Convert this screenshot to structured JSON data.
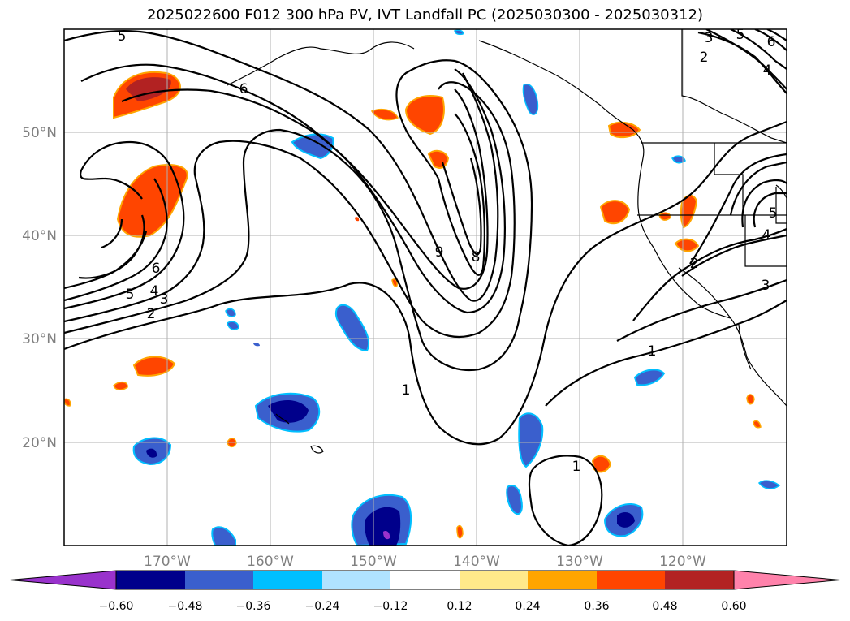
{
  "title": "2025022600 F012 300 hPa PV, IVT Landfall PC (2025030300 - 2025030312)",
  "axes": {
    "lon_labels": [
      "170°W",
      "160°W",
      "150°W",
      "140°W",
      "130°W",
      "120°W"
    ],
    "lat_labels": [
      "50°N",
      "40°N",
      "30°N",
      "20°N"
    ]
  },
  "colorbar": {
    "ticks": [
      "−0.60",
      "−0.48",
      "−0.36",
      "−0.24",
      "−0.12",
      "0.12",
      "0.24",
      "0.36",
      "0.48",
      "0.60"
    ],
    "colors": [
      "#9932cc",
      "#00008b",
      "#3a5fcd",
      "#00bfff",
      "#b0e2ff",
      "#ffffff",
      "#ffe98a",
      "#ffa500",
      "#ff4500",
      "#b22222",
      "#ff82ab"
    ]
  },
  "contour_labels": [
    "5",
    "6",
    "5",
    "4",
    "3",
    "2",
    "6",
    "9",
    "8",
    "1",
    "1",
    "1",
    "2",
    "3",
    "4",
    "5",
    "2",
    "3",
    "4",
    "5",
    "6"
  ],
  "palette": {
    "frame": "#000000",
    "grid": "#b0b0b0",
    "contour": "#000000"
  }
}
